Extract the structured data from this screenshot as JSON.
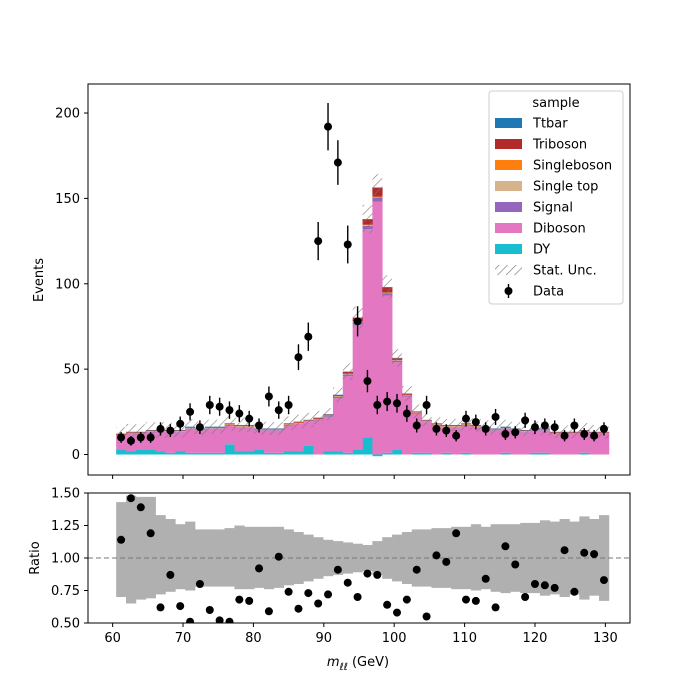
{
  "chart_data": [
    {
      "type": "bar",
      "stacked": true,
      "bins": {
        "start": 60.5,
        "width": 1.4
      },
      "x_ticks": [
        60,
        70,
        80,
        90,
        100,
        110,
        120,
        130
      ],
      "y_ticks": [
        0,
        50,
        100,
        150,
        200
      ],
      "ylim": [
        -12,
        217
      ],
      "xlim": [
        56.5,
        133.5
      ],
      "ylabel": "Events",
      "xlabel": "",
      "grid": false,
      "legend": {
        "title": "sample",
        "placement": "top-right",
        "entries": [
          "Ttbar",
          "Triboson",
          "Singleboson",
          "Single top",
          "Signal",
          "Diboson",
          "DY",
          "Stat. Unc.",
          "Data"
        ]
      },
      "series": [
        {
          "name": "DY",
          "color": "#17becf",
          "values": [
            3,
            2,
            3,
            3,
            2,
            1,
            2,
            1,
            1,
            1,
            1,
            6,
            2,
            2,
            3,
            1,
            1,
            2,
            2,
            5,
            0,
            2,
            2,
            1,
            3,
            10,
            -1,
            1,
            3,
            0,
            1,
            1,
            0,
            1,
            0,
            1,
            0,
            0,
            0,
            1,
            0,
            0,
            1,
            1,
            0,
            0,
            0,
            1,
            0,
            0
          ]
        },
        {
          "name": "Diboson",
          "color": "#e377c2",
          "values": [
            8,
            10,
            9,
            10,
            11,
            12,
            11,
            14,
            13,
            14,
            14,
            11,
            14,
            14,
            11,
            13,
            13,
            15,
            16,
            14,
            20,
            20,
            31,
            45,
            73,
            122,
            148,
            92,
            51,
            34,
            23,
            18,
            17,
            15,
            16,
            16,
            16,
            15,
            14,
            14,
            14,
            13,
            13,
            13,
            12,
            12,
            12,
            12,
            12,
            12
          ]
        },
        {
          "name": "Signal",
          "color": "#9467bd",
          "values": [
            0.3,
            0.3,
            0.3,
            0.3,
            0.3,
            0.3,
            0.3,
            0.3,
            0.3,
            0.3,
            0.3,
            0.3,
            0.3,
            0.3,
            0.3,
            0.3,
            0.3,
            0.3,
            0.3,
            0.3,
            0.5,
            0.5,
            0.8,
            1,
            1.5,
            2,
            2.5,
            1.5,
            1,
            0.6,
            0.3,
            0.3,
            0.3,
            0.3,
            0.3,
            0.3,
            0.3,
            0.3,
            0.3,
            0.3,
            0.3,
            0.3,
            0.3,
            0.3,
            0.3,
            0.3,
            0.3,
            0.3,
            0.3,
            0.3
          ]
        },
        {
          "name": "Single top",
          "color": "#d6b38c",
          "values": [
            0.2,
            0.2,
            0.2,
            0.2,
            0.2,
            0.2,
            0.2,
            0.2,
            0.2,
            0.2,
            0.2,
            0.2,
            0.2,
            0.2,
            0.2,
            0.2,
            0.2,
            0.2,
            0.2,
            0.2,
            0.2,
            0.2,
            0.2,
            0.2,
            0.2,
            0.3,
            0.3,
            0.2,
            0.2,
            0.2,
            0.2,
            0.2,
            0.2,
            0.2,
            0.2,
            0.2,
            0.2,
            0.2,
            0.2,
            0.2,
            0.2,
            0.2,
            0.2,
            0.2,
            0.2,
            0.2,
            0.2,
            0.2,
            0.2,
            0.2
          ]
        },
        {
          "name": "Singleboson",
          "color": "#ff7f0e",
          "values": [
            0.2,
            0.2,
            0.2,
            0.2,
            0.2,
            0.2,
            0.2,
            0.2,
            0.2,
            0.2,
            0.2,
            0.2,
            0.2,
            0.2,
            0.2,
            0.2,
            0.2,
            0.2,
            0.2,
            0.2,
            0.2,
            0.2,
            0.2,
            0.2,
            0.3,
            0.3,
            0.3,
            0.2,
            0.2,
            0.2,
            0.2,
            0.2,
            0.2,
            0.2,
            0.2,
            0.2,
            0.2,
            0.2,
            0.2,
            0.2,
            0.2,
            0.2,
            0.2,
            0.2,
            0.2,
            0.2,
            0.2,
            0.2,
            0.2,
            0.2
          ]
        },
        {
          "name": "Triboson",
          "color": "#b22a2a",
          "values": [
            0.4,
            0.4,
            0.4,
            0.4,
            0.4,
            0.4,
            0.4,
            0.4,
            0.4,
            0.4,
            0.4,
            0.4,
            0.4,
            0.4,
            0.4,
            0.4,
            0.4,
            0.4,
            0.4,
            0.4,
            0.5,
            0.5,
            0.6,
            1,
            2,
            3,
            5,
            3,
            1,
            0.6,
            0.4,
            0.4,
            0.4,
            0.4,
            0.4,
            0.4,
            0.4,
            0.4,
            0.4,
            0.4,
            0.4,
            0.4,
            0.4,
            0.4,
            0.4,
            0.4,
            0.4,
            0.4,
            0.4,
            0.4
          ]
        },
        {
          "name": "Ttbar",
          "color": "#1f77b4",
          "values": [
            0.2,
            0.2,
            0.2,
            0.2,
            0.2,
            0.2,
            0.2,
            0.2,
            0.2,
            0.2,
            0.2,
            0.2,
            0.2,
            0.2,
            0.2,
            0.2,
            0.2,
            0.2,
            0.2,
            0.2,
            0.2,
            0.2,
            0.2,
            0.2,
            0.2,
            0.3,
            0.3,
            0.2,
            0.2,
            0.2,
            0.2,
            0.2,
            0.2,
            0.2,
            0.2,
            0.2,
            0.2,
            0.2,
            0.2,
            0.2,
            0.2,
            0.2,
            0.2,
            0.2,
            0.2,
            0.2,
            0.2,
            0.2,
            0.2,
            0.2
          ]
        }
      ],
      "stat_unc": {
        "name": "Stat. Unc.",
        "hatch_color": "#777777",
        "rel_err": [
          0.3,
          0.35,
          0.33,
          0.32,
          0.32,
          0.3,
          0.29,
          0.27,
          0.26,
          0.25,
          0.25,
          0.24,
          0.25,
          0.25,
          0.25,
          0.25,
          0.24,
          0.22,
          0.21,
          0.2,
          0.18,
          0.15,
          0.12,
          0.1,
          0.08,
          0.06,
          0.05,
          0.07,
          0.09,
          0.12,
          0.16,
          0.18,
          0.19,
          0.2,
          0.21,
          0.22,
          0.23,
          0.23,
          0.24,
          0.25,
          0.25,
          0.26,
          0.26,
          0.27,
          0.27,
          0.28,
          0.28,
          0.29,
          0.3,
          0.3
        ]
      },
      "data_points": {
        "name": "Data",
        "color": "#000000",
        "points": [
          {
            "x": 61.2,
            "y": 10
          },
          {
            "x": 62.6,
            "y": 8
          },
          {
            "x": 64.0,
            "y": 10
          },
          {
            "x": 65.4,
            "y": 10
          },
          {
            "x": 66.8,
            "y": 15
          },
          {
            "x": 68.2,
            "y": 14
          },
          {
            "x": 69.6,
            "y": 18
          },
          {
            "x": 71.0,
            "y": 25
          },
          {
            "x": 72.4,
            "y": 16
          },
          {
            "x": 73.8,
            "y": 29
          },
          {
            "x": 75.2,
            "y": 28
          },
          {
            "x": 76.6,
            "y": 26
          },
          {
            "x": 78.0,
            "y": 24
          },
          {
            "x": 79.4,
            "y": 21
          },
          {
            "x": 80.8,
            "y": 17
          },
          {
            "x": 82.2,
            "y": 34
          },
          {
            "x": 83.6,
            "y": 26
          },
          {
            "x": 85.0,
            "y": 29
          },
          {
            "x": 86.4,
            "y": 57
          },
          {
            "x": 87.8,
            "y": 69
          },
          {
            "x": 89.2,
            "y": 125
          },
          {
            "x": 90.6,
            "y": 192
          },
          {
            "x": 92.0,
            "y": 171
          },
          {
            "x": 93.4,
            "y": 123
          },
          {
            "x": 94.8,
            "y": 78
          },
          {
            "x": 96.2,
            "y": 43
          },
          {
            "x": 97.6,
            "y": 29
          },
          {
            "x": 99.0,
            "y": 31
          },
          {
            "x": 100.4,
            "y": 30
          },
          {
            "x": 101.8,
            "y": 24
          },
          {
            "x": 103.2,
            "y": 17
          },
          {
            "x": 104.6,
            "y": 29
          },
          {
            "x": 106.0,
            "y": 15
          },
          {
            "x": 107.4,
            "y": 14
          },
          {
            "x": 108.8,
            "y": 11
          },
          {
            "x": 110.2,
            "y": 21
          },
          {
            "x": 111.6,
            "y": 19
          },
          {
            "x": 113.0,
            "y": 15
          },
          {
            "x": 114.4,
            "y": 22
          },
          {
            "x": 115.8,
            "y": 12
          },
          {
            "x": 117.2,
            "y": 13
          },
          {
            "x": 118.6,
            "y": 20
          },
          {
            "x": 120.0,
            "y": 16
          },
          {
            "x": 121.4,
            "y": 17
          },
          {
            "x": 122.8,
            "y": 16
          },
          {
            "x": 124.2,
            "y": 11
          },
          {
            "x": 125.6,
            "y": 17
          },
          {
            "x": 127.0,
            "y": 12
          },
          {
            "x": 128.4,
            "y": 11
          },
          {
            "x": 129.8,
            "y": 15
          }
        ]
      }
    },
    {
      "type": "scatter",
      "xlabel": "m_{ℓℓ} (GeV)",
      "xlabel_main": "m",
      "xlabel_sub": "ℓℓ",
      "xlabel_unit": " (GeV)",
      "ylabel": "Ratio",
      "xlim": [
        56.5,
        133.5
      ],
      "ylim": [
        0.5,
        1.5
      ],
      "x_ticks": [
        60,
        70,
        80,
        90,
        100,
        110,
        120,
        130
      ],
      "y_ticks": [
        "0.50",
        "0.75",
        "1.00",
        "1.25",
        "1.50"
      ],
      "reference_line": 1.0,
      "band_color": "#b0b0b0",
      "band": [
        [
          0.7,
          1.43
        ],
        [
          0.65,
          1.48
        ],
        [
          0.68,
          1.47
        ],
        [
          0.69,
          1.47
        ],
        [
          0.72,
          1.33
        ],
        [
          0.74,
          1.3
        ],
        [
          0.76,
          1.26
        ],
        [
          0.75,
          1.28
        ],
        [
          0.78,
          1.22
        ],
        [
          0.78,
          1.22
        ],
        [
          0.78,
          1.22
        ],
        [
          0.78,
          1.23
        ],
        [
          0.76,
          1.25
        ],
        [
          0.76,
          1.24
        ],
        [
          0.77,
          1.24
        ],
        [
          0.76,
          1.24
        ],
        [
          0.77,
          1.24
        ],
        [
          0.79,
          1.22
        ],
        [
          0.8,
          1.2
        ],
        [
          0.82,
          1.18
        ],
        [
          0.84,
          1.16
        ],
        [
          0.86,
          1.14
        ],
        [
          0.87,
          1.13
        ],
        [
          0.88,
          1.12
        ],
        [
          0.89,
          1.11
        ],
        [
          0.9,
          1.1
        ],
        [
          0.87,
          1.13
        ],
        [
          0.84,
          1.16
        ],
        [
          0.82,
          1.18
        ],
        [
          0.8,
          1.2
        ],
        [
          0.78,
          1.22
        ],
        [
          0.78,
          1.22
        ],
        [
          0.77,
          1.23
        ],
        [
          0.77,
          1.23
        ],
        [
          0.76,
          1.24
        ],
        [
          0.76,
          1.24
        ],
        [
          0.75,
          1.26
        ],
        [
          0.76,
          1.24
        ],
        [
          0.74,
          1.26
        ],
        [
          0.73,
          1.26
        ],
        [
          0.74,
          1.26
        ],
        [
          0.73,
          1.27
        ],
        [
          0.73,
          1.27
        ],
        [
          0.71,
          1.29
        ],
        [
          0.72,
          1.28
        ],
        [
          0.7,
          1.3
        ],
        [
          0.72,
          1.28
        ],
        [
          0.68,
          1.32
        ],
        [
          0.71,
          1.3
        ],
        [
          0.67,
          1.33
        ]
      ],
      "points": [
        {
          "x": 61.2,
          "y": 1.14
        },
        {
          "x": 62.6,
          "y": 1.46
        },
        {
          "x": 64.0,
          "y": 1.39
        },
        {
          "x": 65.4,
          "y": 1.19
        },
        {
          "x": 66.8,
          "y": 0.62
        },
        {
          "x": 68.2,
          "y": 0.87
        },
        {
          "x": 69.6,
          "y": 0.63
        },
        {
          "x": 71.0,
          "y": 0.51
        },
        {
          "x": 72.4,
          "y": 0.8
        },
        {
          "x": 73.8,
          "y": 0.6
        },
        {
          "x": 75.2,
          "y": 0.52
        },
        {
          "x": 76.6,
          "y": 0.51
        },
        {
          "x": 78.0,
          "y": 0.68
        },
        {
          "x": 79.4,
          "y": 0.67
        },
        {
          "x": 80.8,
          "y": 0.92
        },
        {
          "x": 82.2,
          "y": 0.59
        },
        {
          "x": 83.6,
          "y": 1.01
        },
        {
          "x": 85.0,
          "y": 0.74
        },
        {
          "x": 86.4,
          "y": 0.61
        },
        {
          "x": 87.8,
          "y": 0.73
        },
        {
          "x": 89.2,
          "y": 0.65
        },
        {
          "x": 90.6,
          "y": 0.72
        },
        {
          "x": 92.0,
          "y": 0.91
        },
        {
          "x": 93.4,
          "y": 0.81
        },
        {
          "x": 94.8,
          "y": 0.7
        },
        {
          "x": 96.2,
          "y": 0.88
        },
        {
          "x": 97.6,
          "y": 0.87
        },
        {
          "x": 99.0,
          "y": 0.64
        },
        {
          "x": 100.4,
          "y": 0.58
        },
        {
          "x": 101.8,
          "y": 0.68
        },
        {
          "x": 103.2,
          "y": 0.91
        },
        {
          "x": 104.6,
          "y": 0.55
        },
        {
          "x": 106.0,
          "y": 1.02
        },
        {
          "x": 107.4,
          "y": 0.97
        },
        {
          "x": 108.8,
          "y": 1.19
        },
        {
          "x": 110.2,
          "y": 0.68
        },
        {
          "x": 111.6,
          "y": 0.67
        },
        {
          "x": 113.0,
          "y": 0.84
        },
        {
          "x": 114.4,
          "y": 0.62
        },
        {
          "x": 115.8,
          "y": 1.09
        },
        {
          "x": 117.2,
          "y": 0.95
        },
        {
          "x": 118.6,
          "y": 0.7
        },
        {
          "x": 120.0,
          "y": 0.8
        },
        {
          "x": 121.4,
          "y": 0.79
        },
        {
          "x": 122.8,
          "y": 0.77
        },
        {
          "x": 124.2,
          "y": 1.06
        },
        {
          "x": 125.6,
          "y": 0.74
        },
        {
          "x": 127.0,
          "y": 1.04
        },
        {
          "x": 128.4,
          "y": 1.03
        },
        {
          "x": 129.8,
          "y": 0.83
        }
      ]
    }
  ]
}
